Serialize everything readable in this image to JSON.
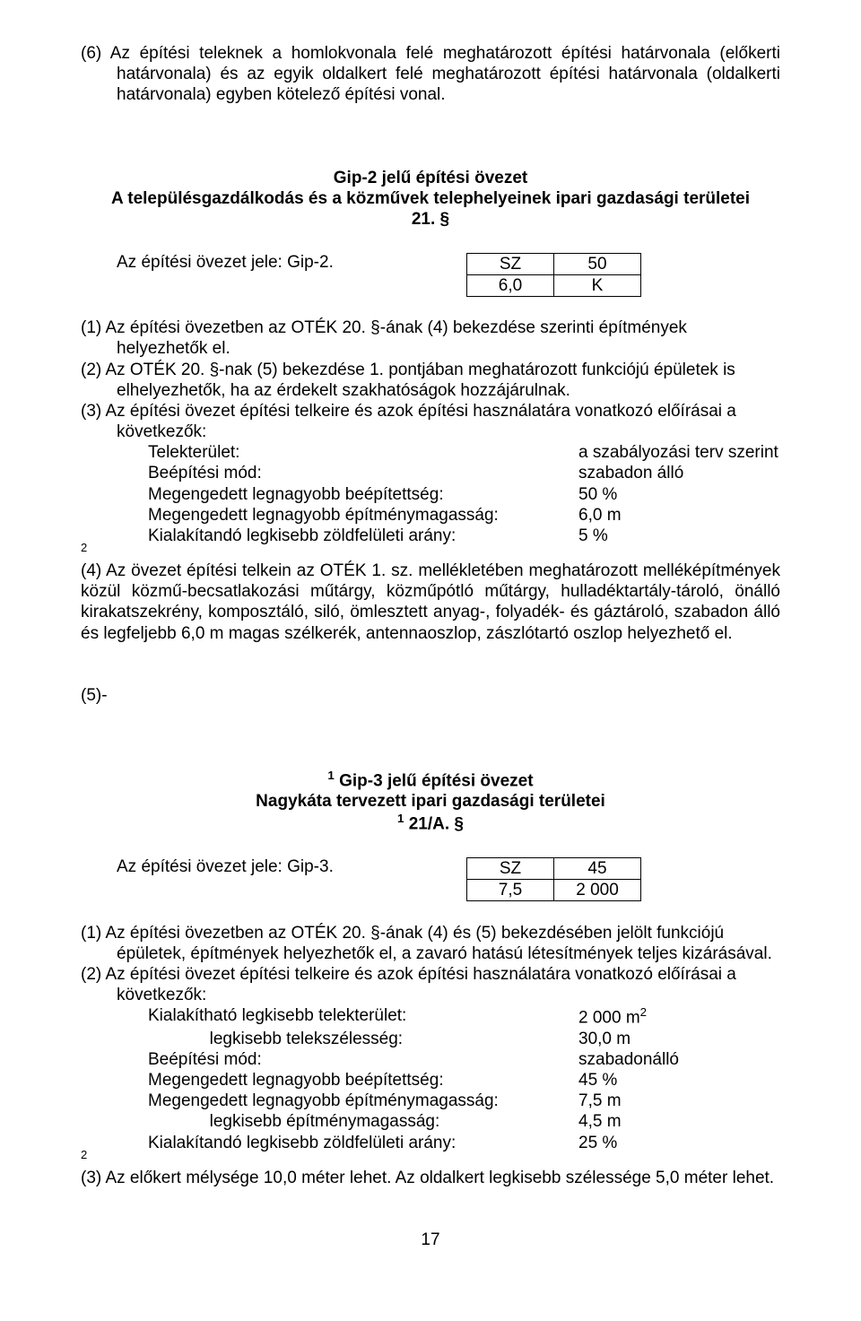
{
  "doc": {
    "para6": "(6) Az építési teleknek a homlokvonala felé meghatározott építési határvonala (előkerti határvonala) és az egyik oldalkert felé meghatározott építési határvonala (oldalkerti határvonala) egyben kötelező építési vonal.",
    "gip2": {
      "heading1": "Gip-2 jelű építési övezet",
      "heading2": "A településgazdálkodás és a közművek telephelyeinek ipari gazdasági területei",
      "heading3": "21. §",
      "zoneLabel": "Az építési övezet jele: Gip-2.",
      "table": {
        "r1c1": "SZ",
        "r1c2": "50",
        "r2c1": "6,0",
        "r2c2": "K"
      },
      "p1a": "(1) Az  építési  övezetben  az  OTÉK  20.",
      "p1b": "  §-ának  (4)  bekezdése  szerinti  építmények",
      "p1c": "helyezhetők el.",
      "p2a": "(2) Az  OTÉK  20.  §-nak  (5)  bekezdése  1.",
      "p2b": " pontjában  meghatározott  funkciójú  épületek  is",
      "p2c": "elhelyezhetők, ha az érdekelt szakhatóságok hozzájárulnak.",
      "p3lead": "(3)  Az  építési  övezet  építési  telkeire  és  azok  építési  használatára  vonatkozó  előírásai  a",
      "p3lead2": "következők:",
      "kv": {
        "k1": "Telekterület:",
        "v1": "a szabályozási terv szerint",
        "k2": "Beépítési mód:",
        "v2": "szabadon álló",
        "k3": "Megengedett legnagyobb beépítettség:",
        "v3": "50 %",
        "k4": "Megengedett legnagyobb építménymagasság:",
        "v4": "6,0 m",
        "k5": "Kialakítandó legkisebb zöldfelületi arány:",
        "v5": "5 %"
      },
      "fn2": "2",
      "p4": "(4) Az övezet építési telkein az OTÉK 1. sz. mellékletében meghatározott melléképítmények közül  közmű-becsatlakozási  műtárgy,  közműpótló  műtárgy,  hulladéktartály-tároló,  önálló kirakatszekrény, komposztáló, siló, ömlesztett anyag-, folyadék- és gáztároló, szabadon álló és legfeljebb 6,0 m magas szélkerék, antennaoszlop, zászlótartó oszlop helyezhető el.",
      "p5": "(5)-"
    },
    "gip3": {
      "fn1": "1",
      "heading1": " Gip-3 jelű építési övezet",
      "heading2": "Nagykáta tervezett ipari gazdasági területei",
      "heading3": " 21/A. §",
      "zoneLabel": "Az építési övezet jele: Gip-3.",
      "table": {
        "r1c1": "SZ",
        "r1c2": "45",
        "r2c1": "7,5",
        "r2c2": "2 000"
      },
      "p1a": "(1)  Az  építési  övezetben  az  OTÉK  20.  §-ának  (4)  és  (5)  bekezdésében  jelölt  funkciójú",
      "p1b": "épületek, építmények helyezhetők el, a zavaró hatású létesítmények teljes kizárásával.",
      "p2lead": "(2)  Az  építési  övezet  építési  telkeire  és  azok  építési  használatára  vonatkozó  előírásai  a",
      "p2lead2": "következők:",
      "kv": {
        "k1": "Kialakítható legkisebb telekterület:",
        "v1": "2 000 m",
        "k1b": "             legkisebb telekszélesség:",
        "v1b": "30,0 m",
        "k2": "Beépítési mód:",
        "v2": "szabadonálló",
        "k3": "Megengedett legnagyobb beépítettség:",
        "v3": "45 %",
        "k4": "Megengedett legnagyobb építménymagasság:",
        "v4": "7,5 m",
        "k4b": "             legkisebb építménymagasság:",
        "v4b": "4,5 m",
        "k5": "Kialakítandó legkisebb zöldfelületi arány:",
        "v5": "25 %"
      },
      "sup2": "2",
      "fn2": "2",
      "p3": "(3)  Az előkert mélysége 10,0 méter lehet. Az oldalkert legkisebb szélessége 5,0 méter lehet."
    },
    "pageNumber": "17"
  },
  "colors": {
    "text": "#000000",
    "background": "#ffffff",
    "border": "#000000"
  },
  "typography": {
    "fontFamily": "Arial",
    "fontSizePt": 14
  }
}
